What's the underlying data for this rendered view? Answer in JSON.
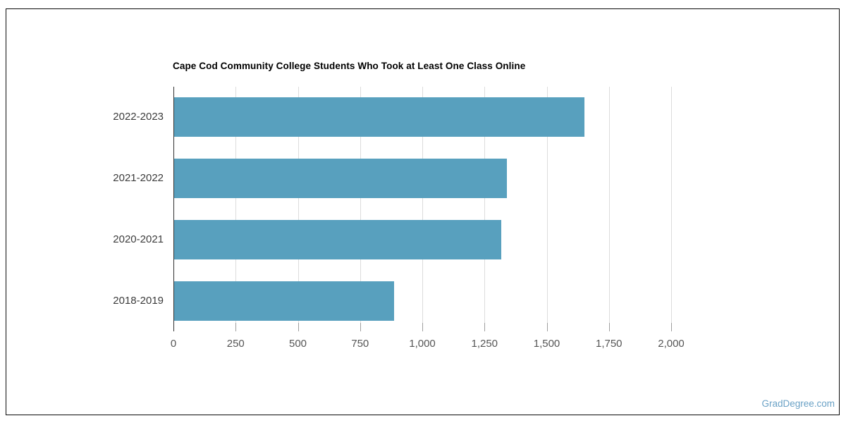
{
  "page": {
    "background_color": "#ffffff",
    "frame_border_color": "#0a0a0a"
  },
  "watermark": {
    "text": "GradDegree.com",
    "color": "#6ba2c6"
  },
  "chart_data": {
    "type": "bar",
    "orientation": "horizontal",
    "title": "Cape Cod Community College Students Who Took at Least One Class Online",
    "categories": [
      "2022-2023",
      "2021-2022",
      "2020-2021",
      "2018-2019"
    ],
    "values": [
      1650,
      1338,
      1315,
      885
    ],
    "xlabel": "",
    "ylabel": "",
    "xlim": [
      0,
      2000
    ],
    "x_tick_values": [
      0,
      250,
      500,
      750,
      1000,
      1250,
      1500,
      1750,
      2000
    ],
    "x_tick_labels": [
      "0",
      "250",
      "500",
      "750",
      "1,000",
      "1,250",
      "1,500",
      "1,750",
      "2,000"
    ],
    "bar_color": "#58a0be",
    "gridline_color": "#dcdcdc",
    "axis_line_color": "#333333",
    "grid": true,
    "legend_position": "none"
  }
}
